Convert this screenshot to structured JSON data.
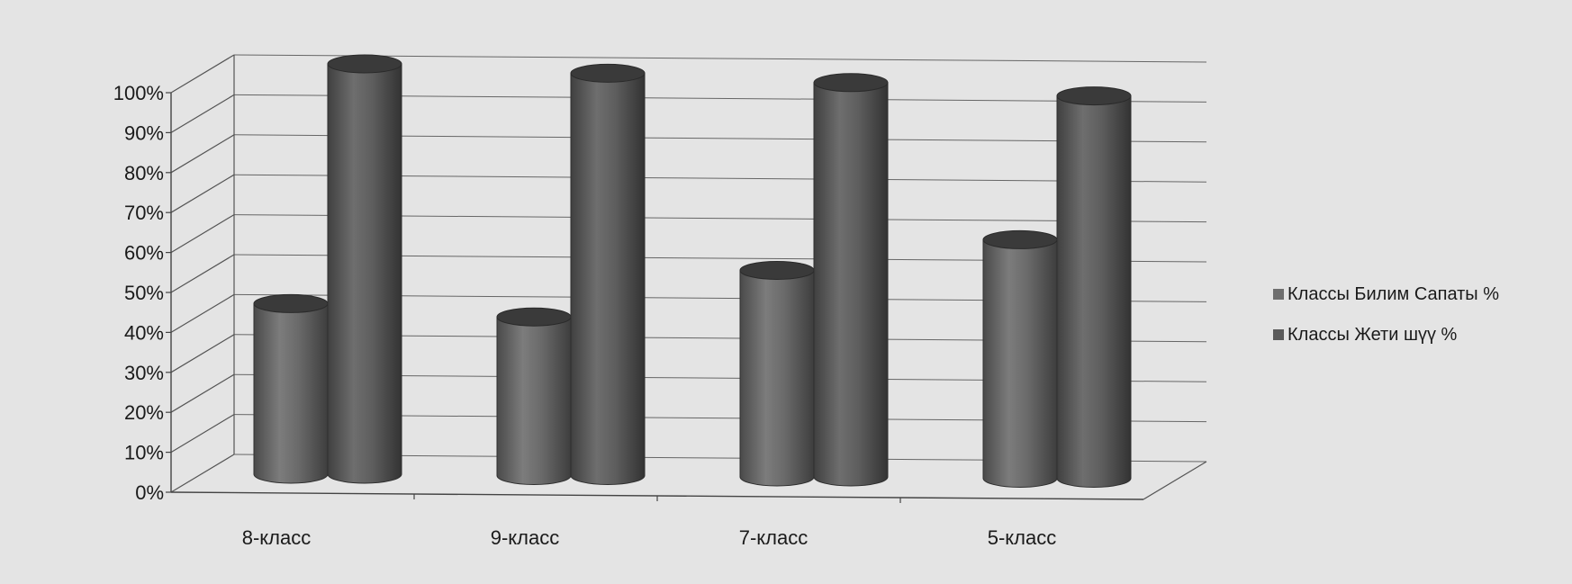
{
  "chart_data": {
    "type": "bar",
    "style": "3d-cylinder",
    "categories": [
      "8-класс",
      "9-класс",
      "7-класс",
      "5-класс"
    ],
    "series": [
      {
        "name": "Классы  Билим  Сапаты %",
        "values": [
          40,
          37,
          49,
          57
        ],
        "color": "#6e6e6e"
      },
      {
        "name": "Классы  Жети шүү %",
        "values": [
          100,
          98,
          96,
          93
        ],
        "color": "#5a5a5a"
      }
    ],
    "yticks": [
      "0%",
      "10%",
      "20%",
      "30%",
      "40%",
      "50%",
      "60%",
      "70%",
      "80%",
      "90%",
      "100%"
    ],
    "ylim": [
      0,
      100
    ],
    "grid": true,
    "legend": "right"
  }
}
